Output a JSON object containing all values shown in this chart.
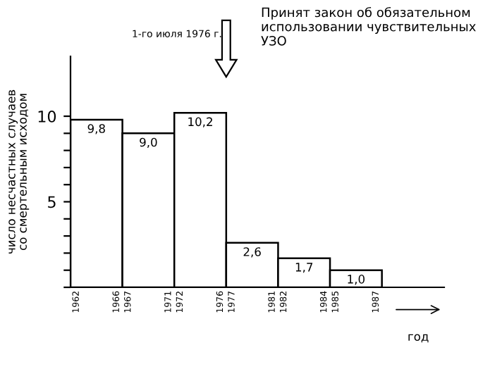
{
  "chart_data": {
    "type": "bar",
    "categories": [
      "1962 1966",
      "1967 1971",
      "1972 1976",
      "1977 1981",
      "1982 1984",
      "1985 1987"
    ],
    "values": [
      9.8,
      9.0,
      10.2,
      2.6,
      1.7,
      1.0
    ],
    "value_labels": [
      "9,8",
      "9,0",
      "10,2",
      "2,6",
      "1,7",
      "1,0"
    ],
    "color": "#ffffff",
    "ylabel": "число несчастных случаев\nсо смертельным исходом",
    "xlabel": "год",
    "ylim": [
      0,
      13.5
    ],
    "yticks": [
      {
        "value": 0,
        "label": null
      },
      {
        "value": 1,
        "label": null
      },
      {
        "value": 2,
        "label": null
      },
      {
        "value": 3,
        "label": null
      },
      {
        "value": 4,
        "label": null
      },
      5,
      {
        "value": 6,
        "label": null
      },
      {
        "value": 7,
        "label": null
      },
      {
        "value": 8,
        "label": null
      },
      {
        "value": 9,
        "label": null
      },
      10
    ],
    "annotations": [
      "1-го июля 1976 г.",
      "Принят закон об обязательном\nиспользовании чувствительных\nУЗО"
    ],
    "grid": false,
    "legend": false
  }
}
